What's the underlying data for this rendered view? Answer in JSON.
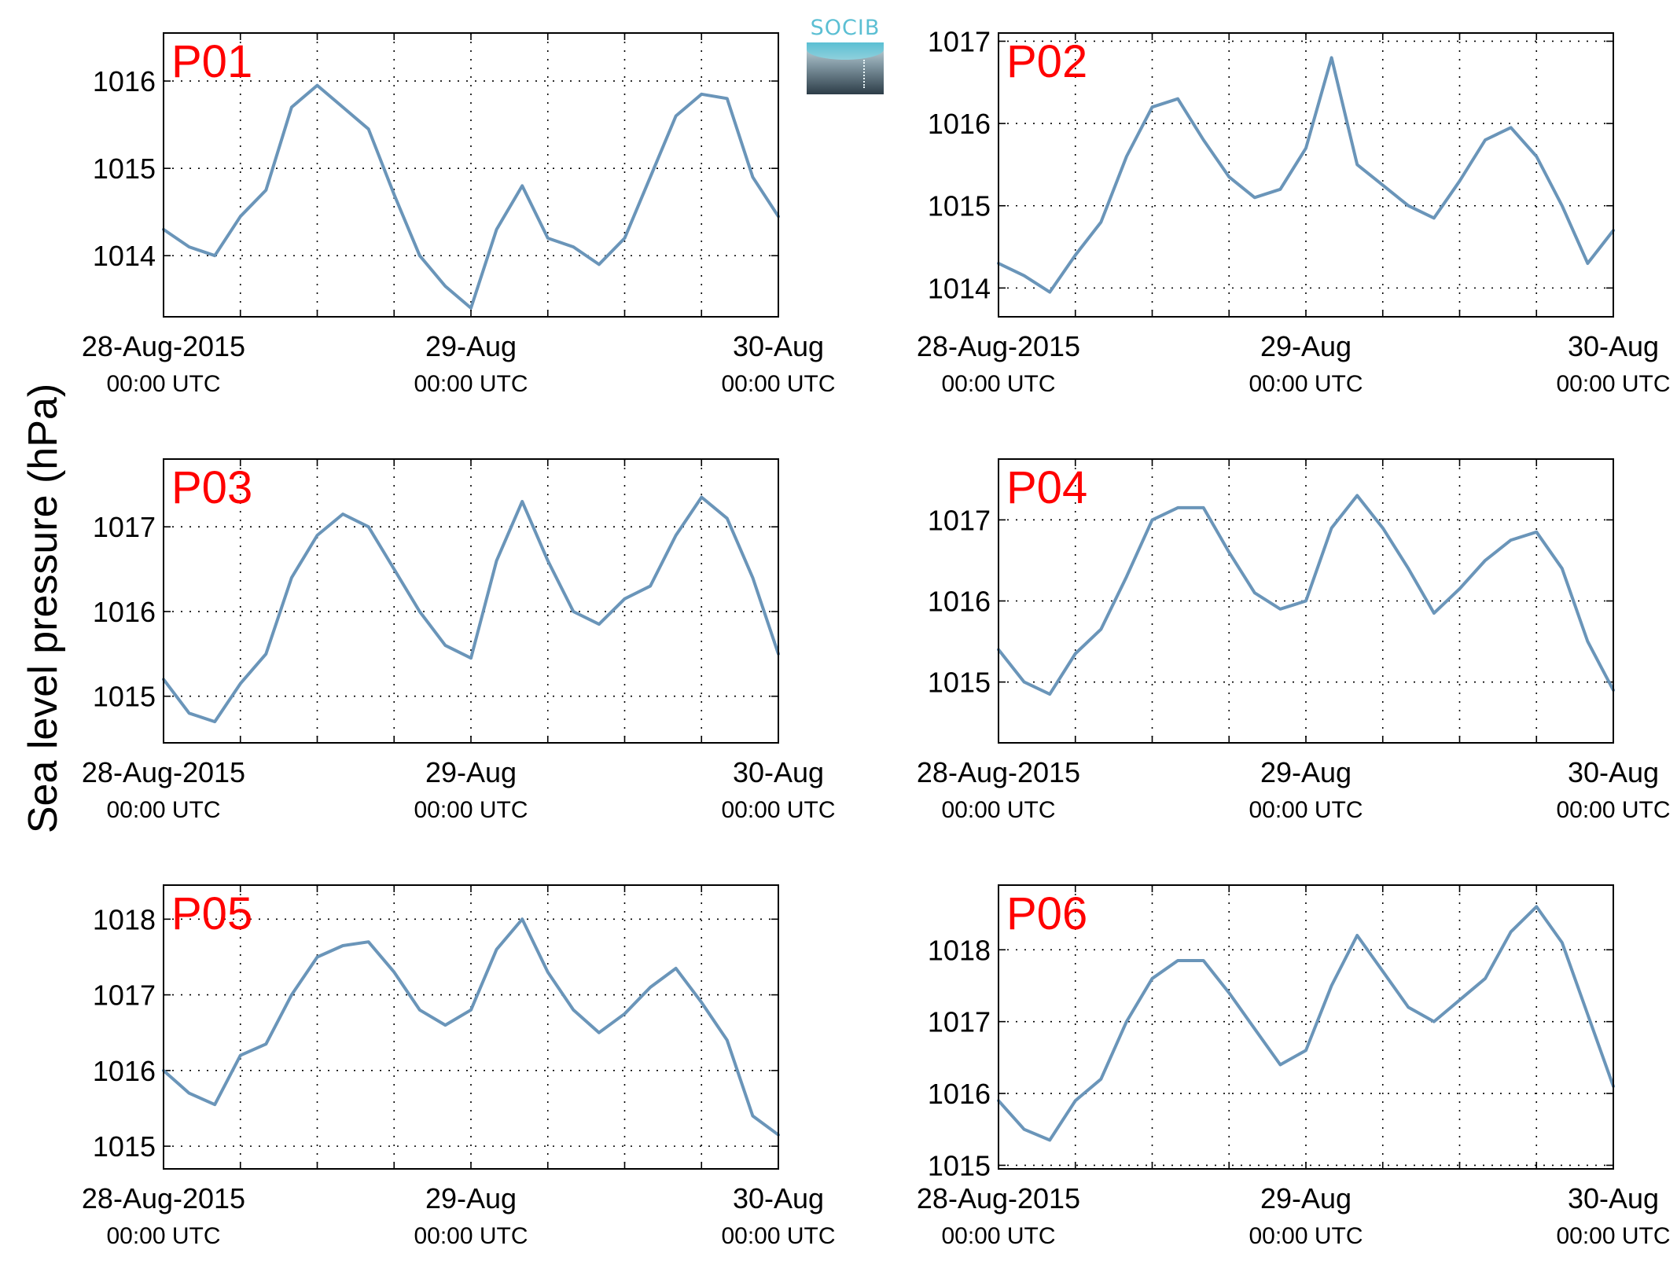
{
  "figure": {
    "ylabel": "Sea level pressure (hPa)",
    "logo_text": "SOCIB"
  },
  "colors": {
    "series": "#6a95b9",
    "panel_label": "#ff0000",
    "axis": "#000000",
    "grid": "#000000"
  },
  "chart_data": [
    {
      "type": "line",
      "title": "P01",
      "xlabel": "",
      "ylabel": "",
      "xlim": [
        "2015-08-28 00:00",
        "2015-08-30 00:00"
      ],
      "ylim": [
        1013.3,
        1016.55
      ],
      "yticks": [
        1014,
        1015,
        1016
      ],
      "x_ticks": [
        {
          "line1": "28-Aug-2015",
          "line2": "00:00 UTC"
        },
        {
          "line1": "29-Aug",
          "line2": "00:00 UTC"
        },
        {
          "line1": "30-Aug",
          "line2": "00:00 UTC"
        }
      ],
      "grid": true,
      "hours": [
        0,
        2,
        4,
        6,
        8,
        10,
        12,
        14,
        16,
        18,
        20,
        22,
        24,
        26,
        28,
        30,
        32,
        34,
        36,
        38,
        40,
        42,
        44,
        46,
        48
      ],
      "values": [
        1014.3,
        1014.1,
        1014.0,
        1014.45,
        1014.75,
        1015.7,
        1015.95,
        1015.7,
        1015.45,
        1014.7,
        1014.0,
        1013.65,
        1013.4,
        1014.3,
        1014.8,
        1014.2,
        1014.1,
        1013.9,
        1014.2,
        1014.9,
        1015.6,
        1015.85,
        1015.8,
        1014.9,
        1014.45
      ]
    },
    {
      "type": "line",
      "title": "P02",
      "xlabel": "",
      "ylabel": "",
      "xlim": [
        "2015-08-28 00:00",
        "2015-08-30 00:00"
      ],
      "ylim": [
        1013.65,
        1017.1
      ],
      "yticks": [
        1014,
        1015,
        1016,
        1017
      ],
      "x_ticks": [
        {
          "line1": "28-Aug-2015",
          "line2": "00:00 UTC"
        },
        {
          "line1": "29-Aug",
          "line2": "00:00 UTC"
        },
        {
          "line1": "30-Aug",
          "line2": "00:00 UTC"
        }
      ],
      "grid": true,
      "hours": [
        0,
        2,
        4,
        6,
        8,
        10,
        12,
        14,
        16,
        18,
        20,
        22,
        24,
        26,
        28,
        30,
        32,
        34,
        36,
        38,
        40,
        42,
        44,
        46,
        48
      ],
      "values": [
        1014.3,
        1014.15,
        1013.95,
        1014.4,
        1014.8,
        1015.6,
        1016.2,
        1016.3,
        1015.8,
        1015.35,
        1015.1,
        1015.2,
        1015.7,
        1016.8,
        1015.5,
        1015.25,
        1015.0,
        1014.85,
        1015.3,
        1015.8,
        1015.95,
        1015.6,
        1015.0,
        1014.3,
        1014.7
      ]
    },
    {
      "type": "line",
      "title": "P03",
      "xlabel": "",
      "ylabel": "",
      "xlim": [
        "2015-08-28 00:00",
        "2015-08-30 00:00"
      ],
      "ylim": [
        1014.45,
        1017.8
      ],
      "yticks": [
        1015,
        1016,
        1017
      ],
      "x_ticks": [
        {
          "line1": "28-Aug-2015",
          "line2": "00:00 UTC"
        },
        {
          "line1": "29-Aug",
          "line2": "00:00 UTC"
        },
        {
          "line1": "30-Aug",
          "line2": "00:00 UTC"
        }
      ],
      "grid": true,
      "hours": [
        0,
        2,
        4,
        6,
        8,
        10,
        12,
        14,
        16,
        18,
        20,
        22,
        24,
        26,
        28,
        30,
        32,
        34,
        36,
        38,
        40,
        42,
        44,
        46,
        48
      ],
      "values": [
        1015.2,
        1014.8,
        1014.7,
        1015.15,
        1015.5,
        1016.4,
        1016.9,
        1017.15,
        1017.0,
        1016.5,
        1016.0,
        1015.6,
        1015.45,
        1016.6,
        1017.3,
        1016.6,
        1016.0,
        1015.85,
        1016.15,
        1016.3,
        1016.9,
        1017.35,
        1017.1,
        1016.4,
        1015.5
      ]
    },
    {
      "type": "line",
      "title": "P04",
      "xlabel": "",
      "ylabel": "",
      "xlim": [
        "2015-08-28 00:00",
        "2015-08-30 00:00"
      ],
      "ylim": [
        1014.25,
        1017.75
      ],
      "yticks": [
        1015,
        1016,
        1017
      ],
      "x_ticks": [
        {
          "line1": "28-Aug-2015",
          "line2": "00:00 UTC"
        },
        {
          "line1": "29-Aug",
          "line2": "00:00 UTC"
        },
        {
          "line1": "30-Aug",
          "line2": "00:00 UTC"
        }
      ],
      "grid": true,
      "hours": [
        0,
        2,
        4,
        6,
        8,
        10,
        12,
        14,
        16,
        18,
        20,
        22,
        24,
        26,
        28,
        30,
        32,
        34,
        36,
        38,
        40,
        42,
        44,
        46,
        48
      ],
      "values": [
        1015.4,
        1015.0,
        1014.85,
        1015.35,
        1015.65,
        1016.3,
        1017.0,
        1017.15,
        1017.15,
        1016.6,
        1016.1,
        1015.9,
        1016.0,
        1016.9,
        1017.3,
        1016.9,
        1016.4,
        1015.85,
        1016.15,
        1016.5,
        1016.75,
        1016.85,
        1016.4,
        1015.5,
        1014.9
      ]
    },
    {
      "type": "line",
      "title": "P05",
      "xlabel": "",
      "ylabel": "",
      "xlim": [
        "2015-08-28 00:00",
        "2015-08-30 00:00"
      ],
      "ylim": [
        1014.7,
        1018.45
      ],
      "yticks": [
        1015,
        1016,
        1017,
        1018
      ],
      "x_ticks": [
        {
          "line1": "28-Aug-2015",
          "line2": "00:00 UTC"
        },
        {
          "line1": "29-Aug",
          "line2": "00:00 UTC"
        },
        {
          "line1": "30-Aug",
          "line2": "00:00 UTC"
        }
      ],
      "grid": true,
      "hours": [
        0,
        2,
        4,
        6,
        8,
        10,
        12,
        14,
        16,
        18,
        20,
        22,
        24,
        26,
        28,
        30,
        32,
        34,
        36,
        38,
        40,
        42,
        44,
        46,
        48
      ],
      "values": [
        1016.0,
        1015.7,
        1015.55,
        1016.2,
        1016.35,
        1017.0,
        1017.5,
        1017.65,
        1017.7,
        1017.3,
        1016.8,
        1016.6,
        1016.8,
        1017.6,
        1018.0,
        1017.3,
        1016.8,
        1016.5,
        1016.75,
        1017.1,
        1017.35,
        1016.9,
        1016.4,
        1015.4,
        1015.15
      ]
    },
    {
      "type": "line",
      "title": "P06",
      "xlabel": "",
      "ylabel": "",
      "xlim": [
        "2015-08-28 00:00",
        "2015-08-30 00:00"
      ],
      "ylim": [
        1014.95,
        1018.9
      ],
      "yticks": [
        1015,
        1016,
        1017,
        1018
      ],
      "x_ticks": [
        {
          "line1": "28-Aug-2015",
          "line2": "00:00 UTC"
        },
        {
          "line1": "29-Aug",
          "line2": "00:00 UTC"
        },
        {
          "line1": "30-Aug",
          "line2": "00:00 UTC"
        }
      ],
      "grid": true,
      "hours": [
        0,
        2,
        4,
        6,
        8,
        10,
        12,
        14,
        16,
        18,
        20,
        22,
        24,
        26,
        28,
        30,
        32,
        34,
        36,
        38,
        40,
        42,
        44,
        46,
        48
      ],
      "values": [
        1015.9,
        1015.5,
        1015.35,
        1015.9,
        1016.2,
        1017.0,
        1017.6,
        1017.85,
        1017.85,
        1017.4,
        1016.9,
        1016.4,
        1016.6,
        1017.5,
        1018.2,
        1017.7,
        1017.2,
        1017.0,
        1017.3,
        1017.6,
        1018.25,
        1018.6,
        1018.1,
        1017.1,
        1016.1
      ]
    }
  ]
}
